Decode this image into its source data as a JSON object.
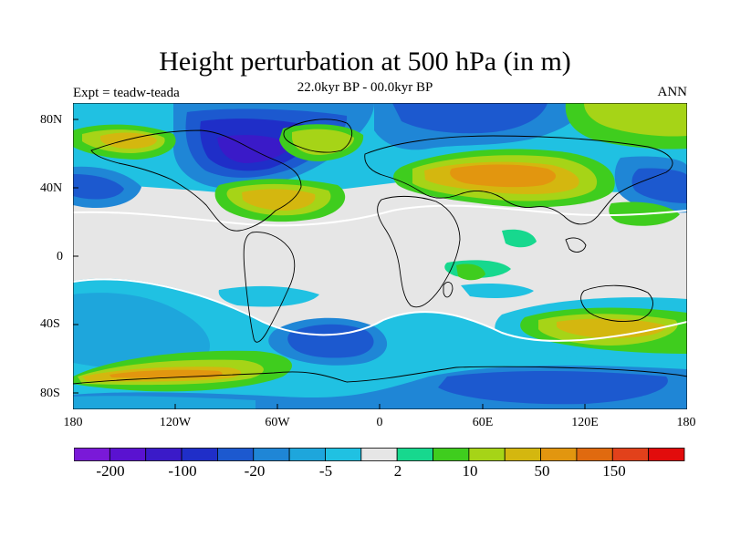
{
  "figure": {
    "title": "Height perturbation at 500 hPa (in m)",
    "subtitle": "22.0kyr BP - 00.0kyr BP",
    "experiment": "Expt = teadw-teada",
    "season": "ANN"
  },
  "axes": {
    "lat_labels": [
      "80N",
      "40N",
      "0",
      "40S",
      "80S"
    ],
    "lon_labels": [
      "180",
      "120W",
      "60W",
      "0",
      "60E",
      "120E",
      "180"
    ]
  },
  "colorbar": {
    "colors": [
      "#7a19d8",
      "#5a12d0",
      "#3a1ac8",
      "#1f2ec8",
      "#1c59cf",
      "#1f86d6",
      "#1ea6dc",
      "#20c1e2",
      "#e6e6e6",
      "#17d88e",
      "#3fcd1e",
      "#a6d417",
      "#d4b70f",
      "#e2960f",
      "#e06a0f",
      "#e2411b",
      "#e20c0c"
    ],
    "tick_labels": [
      "-200",
      "-100",
      "-20",
      "-5",
      "2",
      "10",
      "50",
      "150"
    ]
  },
  "colors": {
    "neutral": "#e6e6e6",
    "coast": "#000000"
  }
}
